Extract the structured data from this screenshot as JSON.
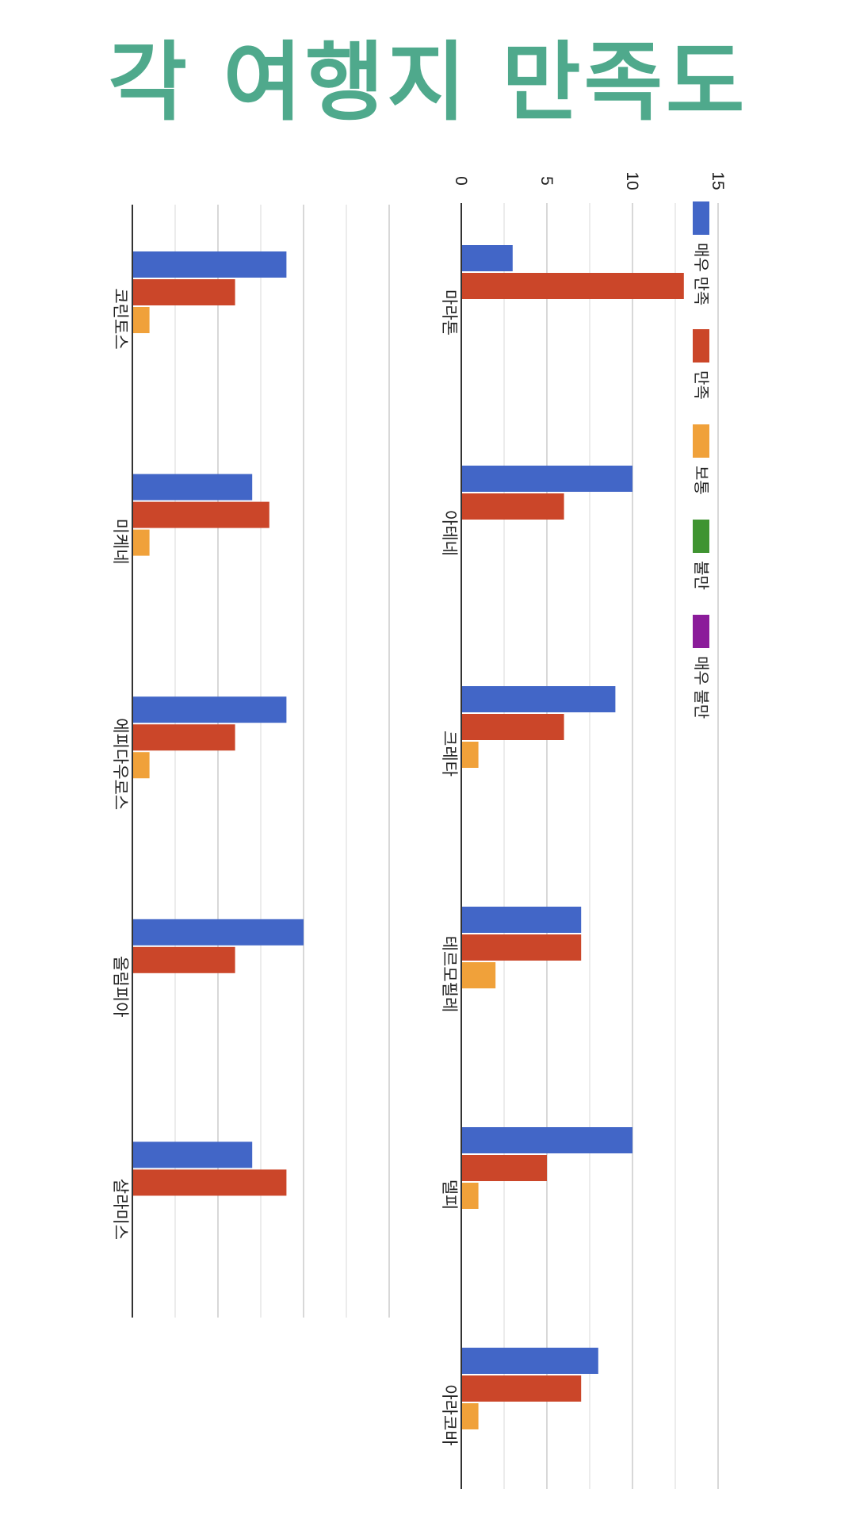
{
  "title": "각 여행지 만족도",
  "colors": {
    "title": "#4fa98c",
    "axis": "#333333",
    "grid_major": "#cccccc",
    "grid_minor": "#e6e6e6"
  },
  "legend": [
    {
      "label": "매우 만족",
      "color": "#4266c7"
    },
    {
      "label": "만족",
      "color": "#cb4629"
    },
    {
      "label": "보통",
      "color": "#f0a13a"
    },
    {
      "label": "불만",
      "color": "#3f9431"
    },
    {
      "label": "매우 불만",
      "color": "#8b1c9a"
    }
  ],
  "chart_data": [
    {
      "type": "bar",
      "orientation": "horizontal",
      "title": "각 여행지 만족도",
      "xlabel": "",
      "ylabel": "",
      "xlim": [
        0,
        15
      ],
      "ticks": [
        "0",
        "5",
        "10",
        "15"
      ],
      "tick_values": [
        0,
        5,
        10,
        15
      ],
      "grid": true,
      "legend_position": "right",
      "categories": [
        "마라톤",
        "아테네",
        "크레타",
        "테르모필레",
        "델피",
        "아라코바"
      ],
      "series": [
        {
          "name": "매우 만족",
          "values": [
            3,
            10,
            9,
            7,
            10,
            8
          ]
        },
        {
          "name": "만족",
          "values": [
            13,
            6,
            6,
            7,
            5,
            7
          ]
        },
        {
          "name": "보통",
          "values": [
            0,
            0,
            1,
            2,
            1,
            1
          ]
        },
        {
          "name": "불만",
          "values": [
            0,
            0,
            0,
            0,
            0,
            0
          ]
        },
        {
          "name": "매우 불만",
          "values": [
            0,
            0,
            0,
            0,
            0,
            0
          ]
        }
      ]
    },
    {
      "type": "bar",
      "orientation": "horizontal",
      "title": "",
      "xlabel": "",
      "ylabel": "",
      "xlim": [
        0,
        15
      ],
      "grid": true,
      "categories": [
        "코린토스",
        "미케네",
        "에피다우로스",
        "올림피아",
        "살라미스"
      ],
      "series": [
        {
          "name": "매우 만족",
          "values": [
            9,
            7,
            9,
            10,
            7
          ]
        },
        {
          "name": "만족",
          "values": [
            6,
            8,
            6,
            6,
            9
          ]
        },
        {
          "name": "보통",
          "values": [
            1,
            1,
            1,
            0,
            0
          ]
        },
        {
          "name": "불만",
          "values": [
            0,
            0,
            0,
            0,
            0
          ]
        },
        {
          "name": "매우 불만",
          "values": [
            0,
            0,
            0,
            0,
            0
          ]
        }
      ]
    }
  ]
}
